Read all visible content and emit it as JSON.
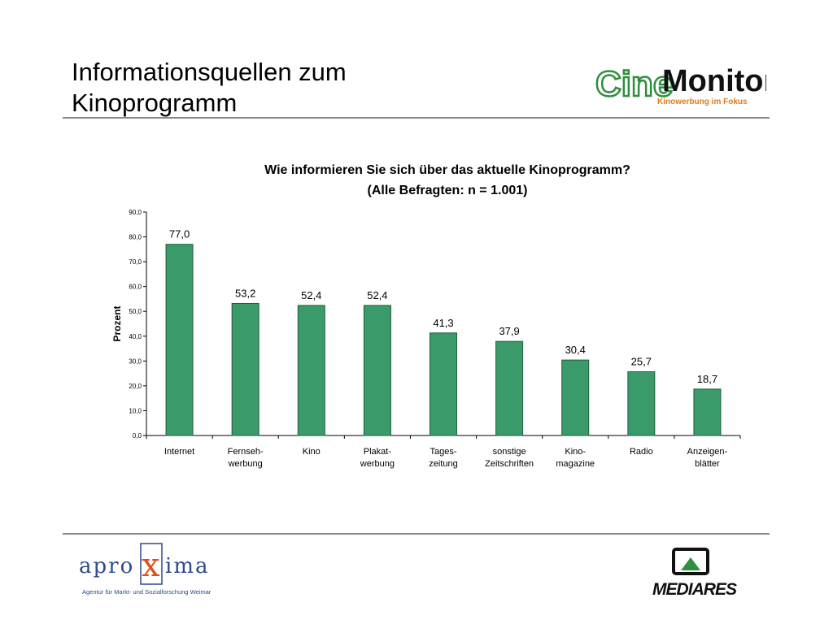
{
  "slide": {
    "title_line1": "Informationsquellen zum",
    "title_line2": "Kinoprogramm"
  },
  "logos": {
    "cine_part1": "Cine",
    "cine_part2": "Monitor",
    "cine_tagline": "Kinowerbung im Fokus",
    "aproxima_pre": "apro",
    "aproxima_x": "x",
    "aproxima_post": "ima",
    "aproxima_tagline": "Agentur für Markt- und Sozialforschung Weimar",
    "mediares": "MEDIARES"
  },
  "colors": {
    "bar": "#3a9a6a",
    "bar_stroke": "#1e5e3c",
    "cine_green": "#2f8f3f",
    "cine_orange": "#e07a1e",
    "aproxima_blue": "#2d4a8a",
    "aproxima_orange": "#d9531e"
  },
  "chart_data": {
    "type": "bar",
    "title": "Wie informieren Sie sich über das aktuelle Kinoprogramm?",
    "subtitle": "(Alle Befragten:  n = 1.001)",
    "ylabel": "Prozent",
    "ylim": [
      0,
      90
    ],
    "yticks": [
      "0,0",
      "10,0",
      "20,0",
      "30,0",
      "40,0",
      "50,0",
      "60,0",
      "70,0",
      "80,0",
      "90,0"
    ],
    "categories": [
      [
        "Internet"
      ],
      [
        "Fernseh-",
        "werbung"
      ],
      [
        "Kino"
      ],
      [
        "Plakat-",
        "werbung"
      ],
      [
        "Tages-",
        "zeitung"
      ],
      [
        "sonstige",
        "Zeitschriften"
      ],
      [
        "Kino-",
        "magazine"
      ],
      [
        "Radio"
      ],
      [
        "Anzeigen-",
        "blätter"
      ]
    ],
    "values": [
      77.0,
      53.2,
      52.4,
      52.4,
      41.3,
      37.9,
      30.4,
      25.7,
      18.7
    ],
    "value_labels": [
      "77,0",
      "53,2",
      "52,4",
      "52,4",
      "41,3",
      "37,9",
      "30,4",
      "25,7",
      "18,7"
    ]
  }
}
